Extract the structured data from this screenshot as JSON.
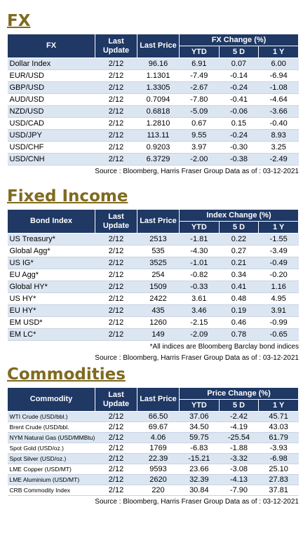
{
  "sections": [
    {
      "title": "FX",
      "table": {
        "header": {
          "name": "FX",
          "last_update": "Last Update",
          "last_price": "Last Price",
          "change": "FX Change (%)",
          "periods": [
            "YTD",
            "5 D",
            "1 Y"
          ]
        },
        "rows": [
          [
            "Dollar Index",
            "2/12",
            "96.16",
            "6.91",
            "0.07",
            "6.00"
          ],
          [
            "EUR/USD",
            "2/12",
            "1.1301",
            "-7.49",
            "-0.14",
            "-6.94"
          ],
          [
            "GBP/USD",
            "2/12",
            "1.3305",
            "-2.67",
            "-0.24",
            "-1.08"
          ],
          [
            "AUD/USD",
            "2/12",
            "0.7094",
            "-7.80",
            "-0.41",
            "-4.64"
          ],
          [
            "NZD/USD",
            "2/12",
            "0.6818",
            "-5.09",
            "-0.06",
            "-3.66"
          ],
          [
            "USD/CAD",
            "2/12",
            "1.2810",
            "0.67",
            "0.15",
            "-0.40"
          ],
          [
            "USD/JPY",
            "2/12",
            "113.11",
            "9.55",
            "-0.24",
            "8.93"
          ],
          [
            "USD/CHF",
            "2/12",
            "0.9203",
            "3.97",
            "-0.30",
            "3.25"
          ],
          [
            "USD/CNH",
            "2/12",
            "6.3729",
            "-2.00",
            "-0.38",
            "-2.49"
          ]
        ]
      },
      "notes": [
        "Source : Bloomberg, Harris Fraser Group Data as of : 03-12-2021"
      ]
    },
    {
      "title": "Fixed Income",
      "table": {
        "header": {
          "name": "Bond Index",
          "last_update": "Last Update",
          "last_price": "Last Price",
          "change": "Index Change (%)",
          "periods": [
            "YTD",
            "5 D",
            "1 Y"
          ]
        },
        "rows": [
          [
            "US Treasury*",
            "2/12",
            "2513",
            "-1.81",
            "0.22",
            "-1.55"
          ],
          [
            "Global Agg*",
            "2/12",
            "535",
            "-4.30",
            "0.27",
            "-3.49"
          ],
          [
            "US IG*",
            "2/12",
            "3525",
            "-1.01",
            "0.21",
            "-0.49"
          ],
          [
            "EU Agg*",
            "2/12",
            "254",
            "-0.82",
            "0.34",
            "-0.20"
          ],
          [
            "Global HY*",
            "2/12",
            "1509",
            "-0.33",
            "0.41",
            "1.16"
          ],
          [
            "US HY*",
            "2/12",
            "2422",
            "3.61",
            "0.48",
            "4.95"
          ],
          [
            "EU HY*",
            "2/12",
            "435",
            "3.46",
            "0.19",
            "3.91"
          ],
          [
            "EM USD*",
            "2/12",
            "1260",
            "-2.15",
            "0.46",
            "-0.99"
          ],
          [
            "EM LC*",
            "2/12",
            "149",
            "-2.09",
            "0.78",
            "-0.65"
          ]
        ]
      },
      "notes": [
        "*All indices are Bloomberg Barclay bond indices",
        "Source : Bloomberg, Harris Fraser Group Data as of : 03-12-2021"
      ]
    },
    {
      "title": "Commodities",
      "table": {
        "header": {
          "name": "Commodity",
          "last_update": "Last Update",
          "last_price": "Last Price",
          "change": "Price Change (%)",
          "periods": [
            "YTD",
            "5 D",
            "1 Y"
          ]
        },
        "rows": [
          [
            "WTI Crude (USD/bbl.)",
            "2/12",
            "66.50",
            "37.06",
            "-2.42",
            "45.71"
          ],
          [
            "Brent Crude (USD/bbl.",
            "2/12",
            "69.67",
            "34.50",
            "-4.19",
            "43.03"
          ],
          [
            "NYM Natural Gas (USD/MMBtu)",
            "2/12",
            "4.06",
            "59.75",
            "-25.54",
            "61.79"
          ],
          [
            "Spot Gold (USD/oz.)",
            "2/12",
            "1769",
            "-6.83",
            "-1.88",
            "-3.93"
          ],
          [
            "Spot Silver (USD/oz.)",
            "2/12",
            "22.39",
            "-15.21",
            "-3.32",
            "-6.98"
          ],
          [
            "LME Copper (USD/MT)",
            "2/12",
            "9593",
            "23.66",
            "-3.08",
            "25.10"
          ],
          [
            "LME Aluminium (USD/MT)",
            "2/12",
            "2620",
            "32.39",
            "-4.13",
            "27.83"
          ],
          [
            "CRB Commodity Index",
            "2/12",
            "220",
            "30.84",
            "-7.90",
            "37.81"
          ]
        ]
      },
      "notes": [
        "Source : Bloomberg, Harris Fraser Group Data as of : 03-12-2021"
      ]
    }
  ]
}
